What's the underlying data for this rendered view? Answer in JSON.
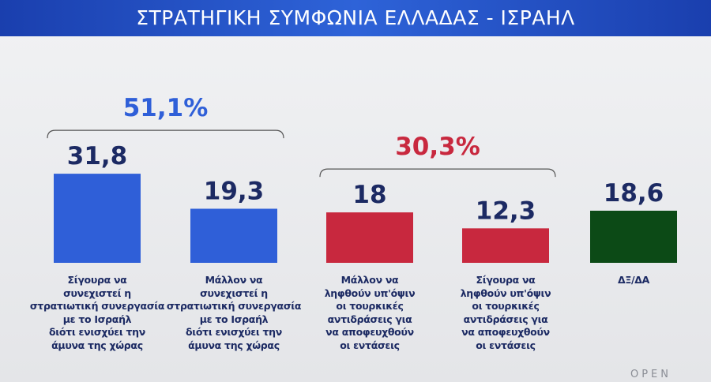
{
  "chart_data": {
    "type": "bar",
    "title": "ΣΤΡΑΤΗΓΙΚΗ ΣΥΜΦΩΝΙΑ ΕΛΛΑΔΑΣ - ΙΣΡΑΗΛ",
    "categories": [
      "Σίγουρα να\nσυνεχιστεί η\nστρατιωτική συνεργασία\nμε το Ισραήλ\nδιότι ενισχύει την\nάμυνα της χώρας",
      "Μάλλον να\nσυνεχιστεί η\nστρατιωτική συνεργασία\nμε το Ισραήλ\nδιότι ενισχύει την\nάμυνα της χώρας",
      "Μάλλον να\nληφθούν υπ'όψιν\nοι τουρκικές\nαντιδράσεις για\nνα αποφευχθούν\nοι εντάσεις",
      "Σίγουρα να\nληφθούν υπ'όψιν\nοι τουρκικές\nαντιδράσεις για\nνα αποφευχθούν\nοι εντάσεις",
      "ΔΞ/ΔΑ"
    ],
    "values": [
      31.8,
      19.3,
      18,
      12.3,
      18.6
    ],
    "value_labels": [
      "31,8",
      "19,3",
      "18",
      "12,3",
      "18,6"
    ],
    "colors": [
      "#2f5fd8",
      "#2f5fd8",
      "#c8283e",
      "#c8283e",
      "#0c4a16"
    ],
    "groups": [
      {
        "value": 51.1,
        "label": "51,1%",
        "color": "#2f5fd8"
      },
      {
        "value": 30.3,
        "label": "30,3%",
        "color": "#c8283e"
      }
    ],
    "logo": "OPEN"
  }
}
